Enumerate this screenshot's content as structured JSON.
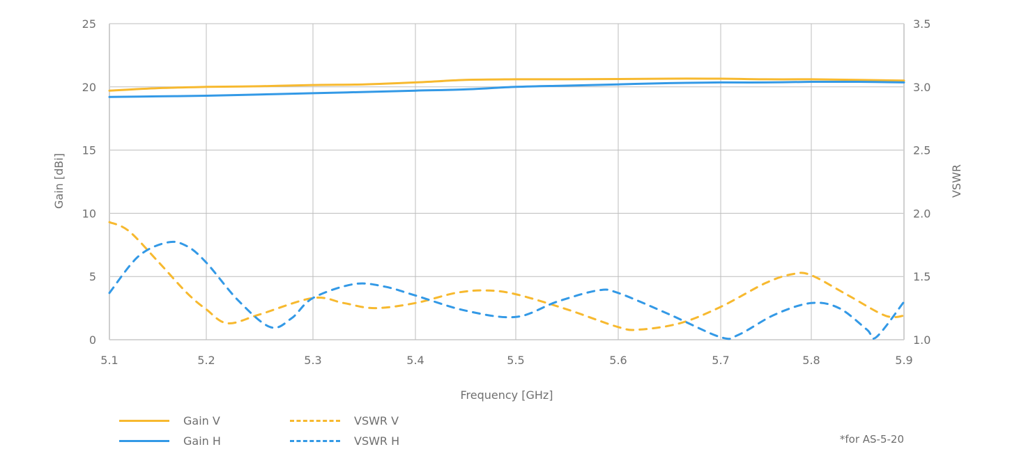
{
  "chart_data": {
    "type": "line",
    "title": "",
    "xlabel": "Frequency [GHz]",
    "ylabel": "Gain [dBi]",
    "y2label": "VSWR",
    "xlim": [
      5.1,
      5.9
    ],
    "ylim": [
      0,
      25
    ],
    "y2lim": [
      1.0,
      3.5
    ],
    "grid": true,
    "legend_position": "bottom-left",
    "x_ticks": [
      "5.1",
      "5.2",
      "5.3",
      "5.4",
      "5.5",
      "5.6",
      "5.7",
      "5.8",
      "5.9"
    ],
    "y_ticks": [
      "0",
      "5",
      "10",
      "15",
      "20",
      "25"
    ],
    "y2_ticks": [
      "1.0",
      "1.5",
      "2.0",
      "2.5",
      "3.0",
      "3.5"
    ],
    "series": [
      {
        "name": "Gain V",
        "axis": "left",
        "style": "solid",
        "color": "#f7b92f",
        "x": [
          5.1,
          5.15,
          5.2,
          5.25,
          5.3,
          5.35,
          5.4,
          5.45,
          5.5,
          5.55,
          5.6,
          5.65,
          5.7,
          5.75,
          5.8,
          5.85,
          5.9
        ],
        "values": [
          19.7,
          19.9,
          20.0,
          20.05,
          20.15,
          20.2,
          20.35,
          20.55,
          20.6,
          20.6,
          20.62,
          20.65,
          20.65,
          20.6,
          20.6,
          20.55,
          20.5
        ]
      },
      {
        "name": "Gain H",
        "axis": "left",
        "style": "solid",
        "color": "#3399e6",
        "x": [
          5.1,
          5.15,
          5.2,
          5.25,
          5.3,
          5.35,
          5.4,
          5.45,
          5.5,
          5.55,
          5.6,
          5.65,
          5.7,
          5.75,
          5.8,
          5.85,
          5.9
        ],
        "values": [
          19.2,
          19.25,
          19.3,
          19.4,
          19.5,
          19.6,
          19.7,
          19.8,
          20.0,
          20.1,
          20.2,
          20.3,
          20.35,
          20.35,
          20.4,
          20.4,
          20.35
        ]
      },
      {
        "name": "VSWR V",
        "axis": "right",
        "style": "dashed",
        "color": "#f7b92f",
        "x": [
          5.1,
          5.12,
          5.15,
          5.18,
          5.2,
          5.22,
          5.25,
          5.3,
          5.33,
          5.36,
          5.4,
          5.44,
          5.47,
          5.5,
          5.55,
          5.6,
          5.62,
          5.66,
          5.7,
          5.75,
          5.78,
          5.8,
          5.84,
          5.88,
          5.9
        ],
        "values": [
          1.93,
          1.86,
          1.62,
          1.37,
          1.24,
          1.13,
          1.2,
          1.33,
          1.29,
          1.25,
          1.29,
          1.37,
          1.39,
          1.36,
          1.24,
          1.1,
          1.08,
          1.13,
          1.26,
          1.45,
          1.52,
          1.51,
          1.35,
          1.19,
          1.19
        ]
      },
      {
        "name": "VSWR H",
        "axis": "right",
        "style": "dashed",
        "color": "#3399e6",
        "x": [
          5.1,
          5.13,
          5.16,
          5.18,
          5.2,
          5.23,
          5.26,
          5.28,
          5.3,
          5.34,
          5.37,
          5.4,
          5.45,
          5.5,
          5.54,
          5.58,
          5.6,
          5.65,
          5.7,
          5.72,
          5.76,
          5.8,
          5.83,
          5.86,
          5.87,
          5.9
        ],
        "values": [
          1.37,
          1.66,
          1.77,
          1.74,
          1.61,
          1.31,
          1.1,
          1.17,
          1.33,
          1.44,
          1.42,
          1.35,
          1.23,
          1.18,
          1.3,
          1.39,
          1.37,
          1.2,
          1.02,
          1.04,
          1.2,
          1.29,
          1.25,
          1.08,
          1.02,
          1.3
        ]
      }
    ],
    "annotations": [
      "*for AS-5-20"
    ]
  },
  "legend": [
    {
      "label": "Gain V",
      "style": "solid",
      "color": "#f7b92f"
    },
    {
      "label": "Gain H",
      "style": "solid",
      "color": "#3399e6"
    },
    {
      "label": "VSWR V",
      "style": "dashed",
      "color": "#f7b92f"
    },
    {
      "label": "VSWR H",
      "style": "dashed",
      "color": "#3399e6"
    }
  ],
  "footnote": "*for AS-5-20",
  "colors": {
    "gain_v": "#f7b92f",
    "gain_h": "#3399e6",
    "grid": "#bdbdbd",
    "axis_text": "#707070"
  }
}
